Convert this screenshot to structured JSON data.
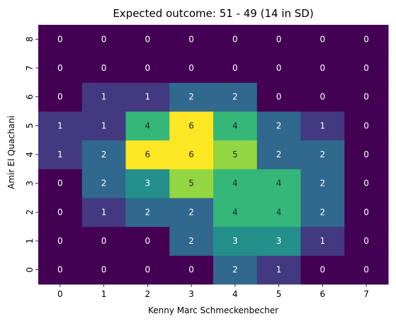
{
  "chart_data": {
    "type": "heatmap",
    "title": "Expected outcome: 51 - 49 (14 in SD)",
    "xlabel": "Kenny Marc Schmeckenbecher",
    "ylabel": "Amir El Quachani",
    "x_categories": [
      "0",
      "1",
      "2",
      "3",
      "4",
      "5",
      "6",
      "7"
    ],
    "y_categories": [
      "0",
      "1",
      "2",
      "3",
      "4",
      "5",
      "6",
      "7",
      "8"
    ],
    "y_order": "bottom-to-top",
    "values": [
      [
        0,
        0,
        0,
        0,
        2,
        1,
        0,
        0
      ],
      [
        0,
        0,
        0,
        2,
        3,
        3,
        1,
        0
      ],
      [
        0,
        1,
        2,
        2,
        4,
        4,
        2,
        0
      ],
      [
        0,
        2,
        3,
        5,
        4,
        4,
        2,
        0
      ],
      [
        1,
        2,
        6,
        6,
        5,
        2,
        2,
        0
      ],
      [
        1,
        1,
        4,
        6,
        4,
        2,
        1,
        0
      ],
      [
        0,
        1,
        1,
        2,
        2,
        0,
        0,
        0
      ],
      [
        0,
        0,
        0,
        0,
        0,
        0,
        0,
        0
      ],
      [
        0,
        0,
        0,
        0,
        0,
        0,
        0,
        0
      ]
    ],
    "value_range": [
      0,
      6
    ],
    "colormap": "viridis",
    "annotated": true,
    "grid": false,
    "legend": "none"
  }
}
